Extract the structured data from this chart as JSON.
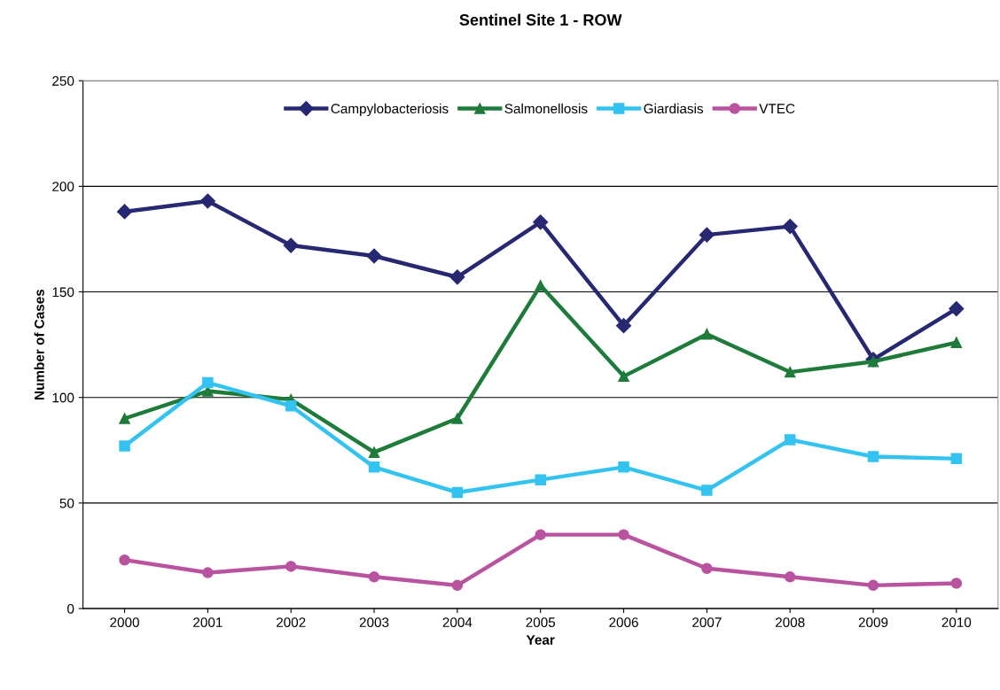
{
  "chart_data": {
    "type": "line",
    "title": "Sentinel Site 1 - ROW",
    "xlabel": "Year",
    "ylabel": "Number of Cases",
    "categories": [
      "2000",
      "2001",
      "2002",
      "2003",
      "2004",
      "2005",
      "2006",
      "2007",
      "2008",
      "2009",
      "2010"
    ],
    "series": [
      {
        "name": "Campylobacteriosis",
        "color": "#262872",
        "marker": "diamond",
        "values": [
          188,
          193,
          172,
          167,
          157,
          183,
          134,
          177,
          181,
          118,
          142
        ]
      },
      {
        "name": "Salmonellosis",
        "color": "#1e7b3a",
        "marker": "triangle",
        "values": [
          90,
          103,
          99,
          74,
          90,
          153,
          110,
          130,
          112,
          117,
          126
        ]
      },
      {
        "name": "Giardiasis",
        "color": "#33c3f0",
        "marker": "square",
        "values": [
          77,
          107,
          96,
          67,
          55,
          61,
          67,
          56,
          80,
          72,
          71
        ]
      },
      {
        "name": "VTEC",
        "color": "#b9529f",
        "marker": "circle",
        "values": [
          23,
          17,
          20,
          15,
          11,
          35,
          35,
          19,
          15,
          11,
          12
        ]
      }
    ],
    "ylim": [
      0,
      250
    ],
    "yticks": [
      0,
      50,
      100,
      150,
      200,
      250
    ],
    "grid": "y",
    "legend": "top"
  }
}
